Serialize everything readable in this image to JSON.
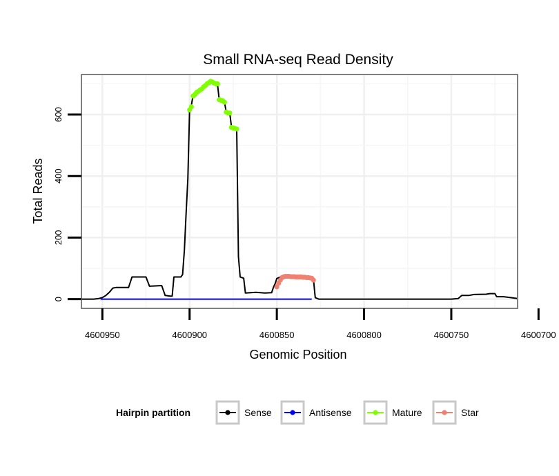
{
  "chart_data": {
    "type": "line",
    "title": "Small RNA-seq Read Density",
    "xlabel": "Genomic Position",
    "ylabel": "Total Reads",
    "xlim": [
      4600962,
      4600712
    ],
    "ylim": [
      -30,
      730
    ],
    "x_reversed": true,
    "x_ticks": [
      4600950,
      4600900,
      4600850,
      4600800,
      4600750,
      4600700
    ],
    "x_tick_labels": [
      "4600950",
      "4600900",
      "4600850",
      "4600800",
      "4600750",
      "4600700"
    ],
    "y_ticks": [
      0,
      200,
      400,
      600
    ],
    "y_tick_labels": [
      "0",
      "200",
      "400",
      "600"
    ],
    "grid": true,
    "legend": {
      "title": "Hairpin partition",
      "position": "bottom",
      "entries": [
        "Sense",
        "Antisense",
        "Mature",
        "Star"
      ]
    },
    "series": [
      {
        "name": "Sense",
        "color": "#000000",
        "style": "line",
        "points": [
          [
            4600962,
            0
          ],
          [
            4600955,
            0
          ],
          [
            4600952,
            2
          ],
          [
            4600950,
            5
          ],
          [
            4600948,
            12
          ],
          [
            4600946,
            22
          ],
          [
            4600944,
            36
          ],
          [
            4600942,
            38
          ],
          [
            4600935,
            38
          ],
          [
            4600933,
            72
          ],
          [
            4600925,
            72
          ],
          [
            4600923,
            42
          ],
          [
            4600916,
            44
          ],
          [
            4600914,
            12
          ],
          [
            4600911,
            10
          ],
          [
            4600910,
            10
          ],
          [
            4600909,
            72
          ],
          [
            4600905,
            72
          ],
          [
            4600904,
            80
          ],
          [
            4600903,
            160
          ],
          [
            4600902,
            280
          ],
          [
            4600901,
            390
          ],
          [
            4600900,
            615
          ],
          [
            4600899,
            630
          ],
          [
            4600898,
            662
          ],
          [
            4600896,
            672
          ],
          [
            4600895,
            680
          ],
          [
            4600893,
            685
          ],
          [
            4600892,
            692
          ],
          [
            4600890,
            700
          ],
          [
            4600888,
            708
          ],
          [
            4600886,
            703
          ],
          [
            4600884,
            697
          ],
          [
            4600883,
            648
          ],
          [
            4600881,
            645
          ],
          [
            4600880,
            640
          ],
          [
            4600879,
            608
          ],
          [
            4600877,
            605
          ],
          [
            4600876,
            560
          ],
          [
            4600874,
            556
          ],
          [
            4600873,
            553
          ],
          [
            4600872,
            138
          ],
          [
            4600871,
            72
          ],
          [
            4600869,
            68
          ],
          [
            4600868,
            20
          ],
          [
            4600862,
            22
          ],
          [
            4600857,
            20
          ],
          [
            4600853,
            21
          ],
          [
            4600852,
            38
          ],
          [
            4600851,
            50
          ],
          [
            4600850,
            67
          ],
          [
            4600848,
            72
          ],
          [
            4600847,
            75
          ],
          [
            4600845,
            72
          ],
          [
            4600843,
            73
          ],
          [
            4600840,
            72
          ],
          [
            4600838,
            71
          ],
          [
            4600835,
            70
          ],
          [
            4600833,
            70
          ],
          [
            4600830,
            69
          ],
          [
            4600829,
            65
          ],
          [
            4600828,
            5
          ],
          [
            4600826,
            0
          ],
          [
            4600810,
            0
          ],
          [
            4600780,
            0
          ],
          [
            4600760,
            0
          ],
          [
            4600750,
            0
          ],
          [
            4600746,
            2
          ],
          [
            4600744,
            12
          ],
          [
            4600740,
            12
          ],
          [
            4600737,
            15
          ],
          [
            4600730,
            16
          ],
          [
            4600728,
            18
          ],
          [
            4600725,
            18
          ],
          [
            4600724,
            8
          ],
          [
            4600720,
            8
          ],
          [
            4600716,
            5
          ],
          [
            4600712,
            2
          ]
        ]
      },
      {
        "name": "Antisense",
        "color": "#0000ff",
        "style": "line",
        "points": [
          [
            4600951,
            0
          ],
          [
            4600830,
            0
          ]
        ]
      },
      {
        "name": "Mature",
        "color": "#7fff00",
        "style": "points",
        "points": [
          [
            4600900,
            615
          ],
          [
            4600899,
            625
          ],
          [
            4600898,
            660
          ],
          [
            4600897,
            665
          ],
          [
            4600896,
            672
          ],
          [
            4600895,
            675
          ],
          [
            4600894,
            680
          ],
          [
            4600893,
            683
          ],
          [
            4600892,
            690
          ],
          [
            4600891,
            694
          ],
          [
            4600890,
            700
          ],
          [
            4600889,
            703
          ],
          [
            4600888,
            708
          ],
          [
            4600887,
            706
          ],
          [
            4600886,
            702
          ],
          [
            4600885,
            700
          ],
          [
            4600884,
            700
          ],
          [
            4600883,
            648
          ],
          [
            4600882,
            646
          ],
          [
            4600881,
            645
          ],
          [
            4600880,
            640
          ],
          [
            4600879,
            608
          ],
          [
            4600878,
            605
          ],
          [
            4600877,
            605
          ],
          [
            4600876,
            558
          ],
          [
            4600875,
            556
          ],
          [
            4600874,
            555
          ],
          [
            4600873,
            553
          ]
        ]
      },
      {
        "name": "Star",
        "color": "#f08070",
        "style": "points",
        "points": [
          [
            4600850,
            40
          ],
          [
            4600849,
            52
          ],
          [
            4600848,
            62
          ],
          [
            4600847,
            70
          ],
          [
            4600846,
            73
          ],
          [
            4600845,
            74
          ],
          [
            4600844,
            74
          ],
          [
            4600843,
            74
          ],
          [
            4600842,
            73
          ],
          [
            4600841,
            73
          ],
          [
            4600840,
            73
          ],
          [
            4600839,
            72
          ],
          [
            4600838,
            72
          ],
          [
            4600837,
            72
          ],
          [
            4600836,
            72
          ],
          [
            4600835,
            71
          ],
          [
            4600834,
            71
          ],
          [
            4600833,
            70
          ],
          [
            4600832,
            70
          ],
          [
            4600831,
            69
          ],
          [
            4600830,
            68
          ],
          [
            4600829,
            62
          ]
        ]
      }
    ]
  }
}
